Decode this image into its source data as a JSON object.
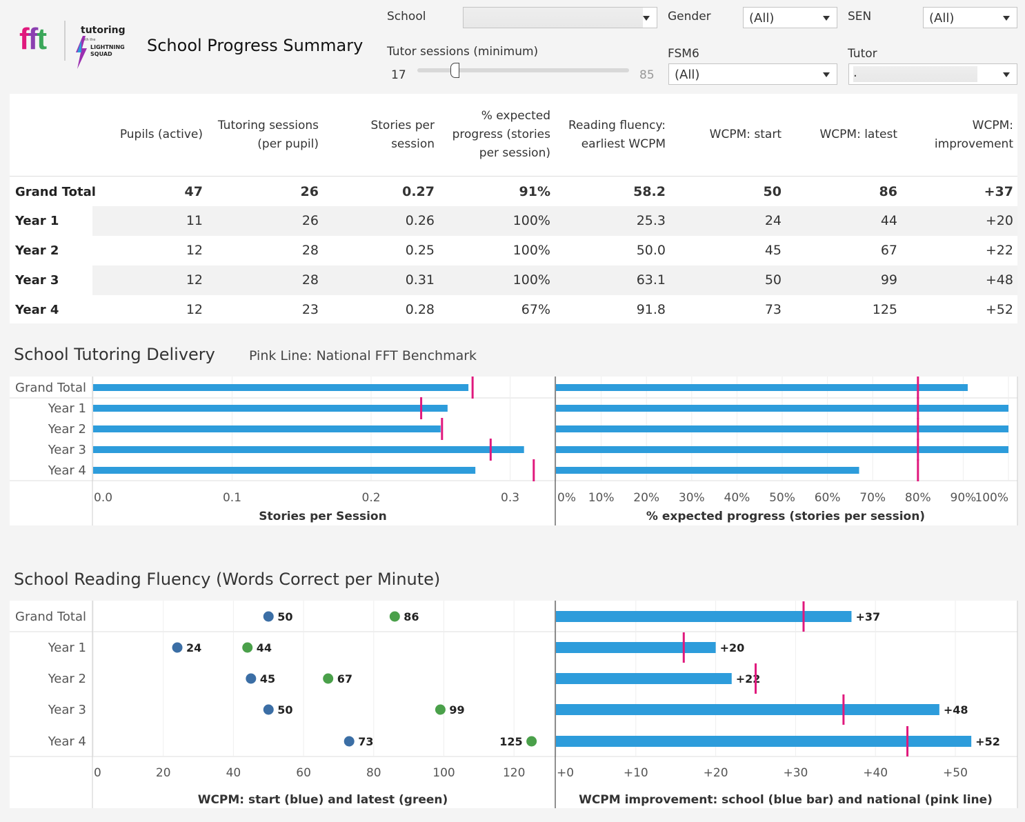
{
  "header": {
    "logo_letters": [
      "f",
      "f",
      "t"
    ],
    "logo_tutoring": "tutoring",
    "logo_with_the": "with the",
    "logo_lightning": "LIGHTNING",
    "logo_squad": "SQUAD",
    "title": "School Progress Summary"
  },
  "filters": {
    "school_label": "School",
    "school_value": "",
    "gender_label": "Gender",
    "gender_value": "(All)",
    "sen_label": "SEN",
    "sen_value": "(All)",
    "sessions_label": "Tutor sessions (minimum)",
    "sessions_min": "17",
    "sessions_max": "85",
    "sessions_value": 17,
    "fsm6_label": "FSM6",
    "fsm6_value": "(All)",
    "tutor_label": "Tutor",
    "tutor_value": "."
  },
  "table": {
    "headers": [
      [
        "Pupils (active)"
      ],
      [
        "Tutoring sessions",
        "(per pupil)"
      ],
      [
        "Stories per",
        "session"
      ],
      [
        "% expected",
        "progress (stories",
        "per session)"
      ],
      [
        "Reading fluency:",
        "earliest WCPM"
      ],
      [
        "WCPM: start"
      ],
      [
        "WCPM: latest"
      ],
      [
        "WCPM:",
        "improvement"
      ]
    ],
    "rows": [
      {
        "label": "Grand Total",
        "cells": [
          "47",
          "26",
          "0.27",
          "91%",
          "58.2",
          "50",
          "86",
          "+37"
        ]
      },
      {
        "label": "Year 1",
        "cells": [
          "11",
          "26",
          "0.26",
          "100%",
          "25.3",
          "24",
          "44",
          "+20"
        ]
      },
      {
        "label": "Year 2",
        "cells": [
          "12",
          "28",
          "0.25",
          "100%",
          "50.0",
          "45",
          "67",
          "+22"
        ]
      },
      {
        "label": "Year 3",
        "cells": [
          "12",
          "28",
          "0.31",
          "100%",
          "63.1",
          "50",
          "99",
          "+48"
        ]
      },
      {
        "label": "Year 4",
        "cells": [
          "12",
          "23",
          "0.28",
          "67%",
          "91.8",
          "73",
          "125",
          "+52"
        ]
      }
    ]
  },
  "delivery": {
    "title": "School Tutoring Delivery",
    "note": "Pink Line: National FFT Benchmark"
  },
  "fluency": {
    "title": "School Reading Fluency (Words Correct per Minute)"
  },
  "colors": {
    "bar": "#2d9cdb",
    "benchmark": "#e0197d",
    "start_dot": "#3b6ea5",
    "latest_dot": "#4aa04a",
    "logo_f1": "#e0197d",
    "logo_f2": "#8b3fb0",
    "logo_t": "#3ba75a"
  },
  "chart_data": [
    {
      "type": "bar",
      "title": "",
      "categories": [
        "Grand Total",
        "Year 1",
        "Year 2",
        "Year 3",
        "Year 4"
      ],
      "series": [
        {
          "name": "Stories per Session",
          "values": [
            0.27,
            0.255,
            0.25,
            0.31,
            0.275
          ]
        },
        {
          "name": "National FFT Benchmark",
          "values": [
            0.273,
            0.236,
            0.251,
            0.286,
            0.317
          ]
        }
      ],
      "xlabel": "Stories per Session",
      "ticks": [
        "0.0",
        "0.1",
        "0.2",
        "0.3"
      ],
      "xlim": [
        0,
        0.33
      ]
    },
    {
      "type": "bar",
      "title": "",
      "categories": [
        "Grand Total",
        "Year 1",
        "Year 2",
        "Year 3",
        "Year 4"
      ],
      "series": [
        {
          "name": "% expected progress",
          "values": [
            91,
            100,
            100,
            100,
            67
          ]
        },
        {
          "name": "National FFT Benchmark",
          "values": [
            80,
            80,
            80,
            80,
            80
          ]
        }
      ],
      "xlabel": "% expected progress (stories per session)",
      "ticks": [
        "0%",
        "10%",
        "20%",
        "30%",
        "40%",
        "50%",
        "60%",
        "70%",
        "80%",
        "90%",
        "100%"
      ],
      "xlim": [
        0,
        100
      ]
    },
    {
      "type": "scatter",
      "title": "",
      "categories": [
        "Grand Total",
        "Year 1",
        "Year 2",
        "Year 3",
        "Year 4"
      ],
      "series": [
        {
          "name": "WCPM: start",
          "values": [
            50,
            24,
            45,
            50,
            73
          ]
        },
        {
          "name": "WCPM: latest",
          "values": [
            86,
            44,
            67,
            99,
            125
          ]
        }
      ],
      "xlabel": "WCPM: start (blue) and latest (green)",
      "ticks": [
        "0",
        "20",
        "40",
        "60",
        "80",
        "100",
        "120"
      ],
      "xlim": [
        0,
        131
      ]
    },
    {
      "type": "bar",
      "title": "",
      "categories": [
        "Grand Total",
        "Year 1",
        "Year 2",
        "Year 3",
        "Year 4"
      ],
      "series": [
        {
          "name": "WCPM improvement: school",
          "values": [
            37,
            20,
            22,
            48,
            52
          ]
        },
        {
          "name": "WCPM improvement: national",
          "values": [
            31,
            16,
            25,
            36,
            44
          ]
        }
      ],
      "labels": [
        "+37",
        "+20",
        "+22",
        "+48",
        "+52"
      ],
      "xlabel": "WCPM improvement: school (blue bar) and national (pink line)",
      "ticks": [
        "+0",
        "+10",
        "+20",
        "+30",
        "+40",
        "+50"
      ],
      "xlim": [
        0,
        58
      ]
    }
  ]
}
